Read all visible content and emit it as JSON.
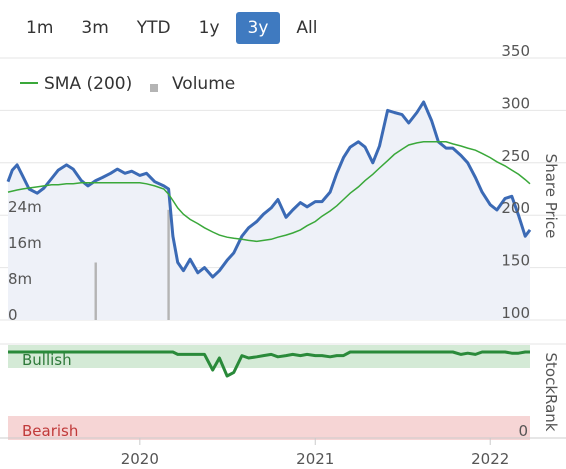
{
  "range_selector": {
    "buttons": [
      "1m",
      "3m",
      "YTD",
      "1y",
      "3y",
      "All"
    ],
    "active": "3y"
  },
  "legend": {
    "sma_label": "SMA (200)",
    "volume_label": "Volume"
  },
  "colors": {
    "price": "#3b6ab5",
    "price_fill": "#eef1f8",
    "sma": "#3aa83a",
    "volume": "#b4b4b4",
    "stockrank": "#2a8a3a",
    "bullish_band": "#d4ead6",
    "bearish_band": "#f6d5d5",
    "bullish_text": "#2e7a3a",
    "bearish_text": "#c03a3a",
    "active_button": "#3f7ac0"
  },
  "chart_data": {
    "type": "line",
    "x_dates": [
      "2019-04-01",
      "2019-04-10",
      "2019-04-20",
      "2019-05-01",
      "2019-05-15",
      "2019-06-01",
      "2019-06-15",
      "2019-07-01",
      "2019-07-15",
      "2019-08-01",
      "2019-08-15",
      "2019-09-01",
      "2019-09-15",
      "2019-10-01",
      "2019-10-15",
      "2019-11-01",
      "2019-11-15",
      "2019-12-01",
      "2019-12-15",
      "2020-01-01",
      "2020-01-15",
      "2020-02-01",
      "2020-02-20",
      "2020-03-01",
      "2020-03-10",
      "2020-03-20",
      "2020-04-01",
      "2020-04-15",
      "2020-05-01",
      "2020-05-15",
      "2020-06-01",
      "2020-06-15",
      "2020-07-01",
      "2020-07-15",
      "2020-08-01",
      "2020-08-15",
      "2020-09-01",
      "2020-09-15",
      "2020-10-01",
      "2020-10-15",
      "2020-11-01",
      "2020-11-15",
      "2020-12-01",
      "2020-12-15",
      "2021-01-01",
      "2021-01-15",
      "2021-02-01",
      "2021-02-15",
      "2021-03-01",
      "2021-03-15",
      "2021-04-01",
      "2021-04-15",
      "2021-05-01",
      "2021-05-15",
      "2021-06-01",
      "2021-06-15",
      "2021-07-01",
      "2021-07-15",
      "2021-08-01",
      "2021-08-15",
      "2021-09-01",
      "2021-09-15",
      "2021-10-01",
      "2021-10-15",
      "2021-11-01",
      "2021-11-15",
      "2021-12-01",
      "2021-12-15",
      "2022-01-01",
      "2022-01-15",
      "2022-02-01",
      "2022-02-15",
      "2022-03-01",
      "2022-03-15",
      "2022-03-25"
    ],
    "series": [
      {
        "name": "Share Price",
        "values": [
          232,
          243,
          248,
          238,
          225,
          221,
          226,
          235,
          243,
          248,
          244,
          233,
          228,
          233,
          236,
          240,
          244,
          240,
          242,
          238,
          240,
          232,
          228,
          225,
          180,
          155,
          147,
          158,
          145,
          150,
          141,
          147,
          157,
          164,
          180,
          188,
          194,
          201,
          207,
          215,
          198,
          205,
          212,
          208,
          213,
          213,
          222,
          240,
          255,
          265,
          270,
          265,
          250,
          266,
          300,
          298,
          296,
          288,
          298,
          308,
          290,
          270,
          264,
          264,
          257,
          250,
          236,
          222,
          210,
          205,
          216,
          218,
          200,
          180,
          186
        ]
      },
      {
        "name": "SMA (200)",
        "values": [
          222,
          223,
          224,
          225,
          226,
          227,
          228,
          229,
          229,
          230,
          230,
          231,
          231,
          231,
          231,
          231,
          231,
          231,
          231,
          231,
          230,
          228,
          225,
          220,
          214,
          207,
          201,
          196,
          192,
          188,
          184,
          181,
          179,
          178,
          177,
          176,
          175,
          176,
          177,
          179,
          181,
          183,
          186,
          190,
          194,
          199,
          204,
          209,
          215,
          221,
          227,
          233,
          239,
          245,
          252,
          258,
          263,
          267,
          269,
          270,
          270,
          270,
          270,
          268,
          266,
          264,
          262,
          259,
          255,
          251,
          247,
          243,
          239,
          234,
          230
        ]
      }
    ],
    "volume": {
      "name": "Volume",
      "values": [
        0,
        0,
        0,
        0,
        0,
        0,
        0,
        0,
        0,
        0,
        0,
        0,
        0,
        12,
        0,
        0,
        0,
        0,
        0,
        0,
        0,
        0,
        0,
        23,
        0,
        0,
        0,
        0,
        0,
        0,
        0,
        0,
        0,
        0,
        0,
        0,
        0,
        0,
        0,
        0,
        0,
        0,
        0,
        0,
        0,
        0,
        0,
        0,
        0,
        0,
        0,
        0,
        0,
        0,
        0,
        0,
        0,
        0,
        0,
        0,
        0,
        0,
        0,
        0,
        0,
        0,
        0,
        0,
        0,
        0,
        0,
        0,
        0,
        0,
        0
      ],
      "ticks": [
        "0",
        "8m",
        "16m",
        "24m"
      ]
    },
    "stockrank": {
      "values": [
        95,
        95,
        95,
        95,
        95,
        95,
        95,
        95,
        95,
        95,
        95,
        95,
        95,
        95,
        95,
        95,
        95,
        95,
        95,
        95,
        95,
        95,
        95,
        95,
        95,
        93,
        93,
        93,
        93,
        93,
        80,
        90,
        75,
        78,
        92,
        90,
        91,
        92,
        93,
        91,
        92,
        93,
        92,
        93,
        92,
        92,
        91,
        92,
        92,
        95,
        95,
        95,
        95,
        95,
        95,
        95,
        95,
        95,
        95,
        95,
        95,
        95,
        95,
        95,
        93,
        94,
        93,
        95,
        95,
        95,
        95,
        94,
        94,
        95,
        95
      ],
      "bullish_label": "Bullish",
      "bearish_label": "Bearish",
      "zero_label": "0",
      "axis_label": "StockRank"
    },
    "y_axis": {
      "label": "Share Price",
      "ticks": [
        "100",
        "150",
        "200",
        "250",
        "300",
        "350"
      ],
      "range": [
        100,
        350
      ]
    },
    "x_axis": {
      "ticks": [
        "2020",
        "2021",
        "2022"
      ],
      "tick_dates": [
        "2020-01-01",
        "2021-01-01",
        "2022-01-01"
      ]
    }
  }
}
